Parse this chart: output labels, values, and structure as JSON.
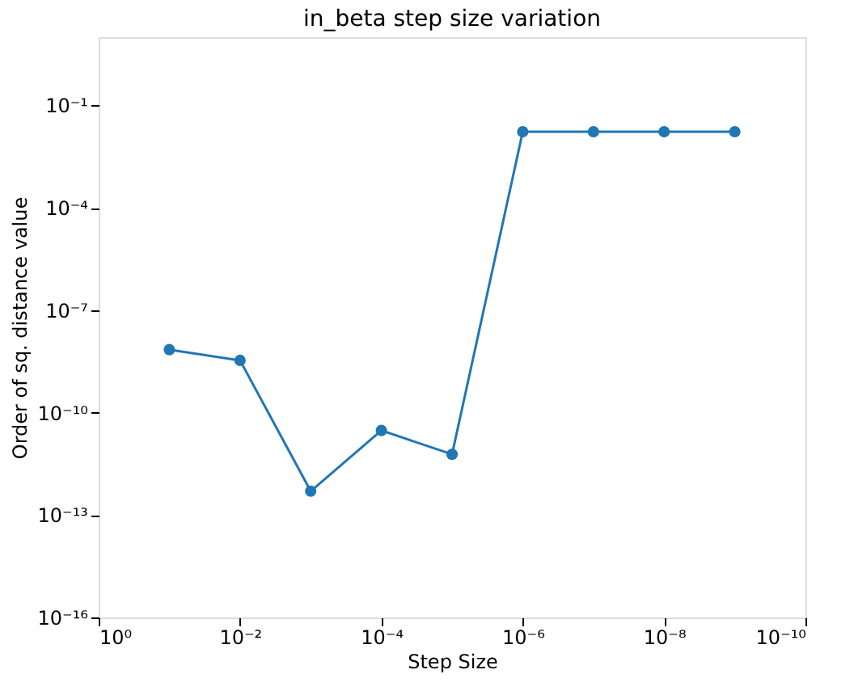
{
  "chart_data": {
    "type": "line",
    "title": "in_beta step size variation",
    "xlabel": "Step Size",
    "ylabel": "Order of sq. distance value",
    "x": [
      0.1,
      0.01,
      0.001,
      0.0001,
      1e-05,
      1e-06,
      1e-07,
      1e-08,
      1e-09
    ],
    "series": [
      {
        "color": "#1f77b4",
        "values": [
          7e-09,
          3.4e-09,
          5e-13,
          3e-11,
          6e-12,
          0.017,
          0.017,
          0.017,
          0.017
        ]
      }
    ],
    "log": "xy",
    "xlim": [
      1,
      1e-10
    ],
    "ylim": [
      1e-16,
      10
    ],
    "xticks": [
      {
        "value": 1,
        "label": "10⁰"
      },
      {
        "value": 0.01,
        "label": "10⁻²"
      },
      {
        "value": 0.0001,
        "label": "10⁻⁴"
      },
      {
        "value": 1e-06,
        "label": "10⁻⁶"
      },
      {
        "value": 1e-08,
        "label": "10⁻⁸"
      },
      {
        "value": 1e-10,
        "label": "10⁻¹⁰"
      }
    ],
    "yticks": [
      {
        "value": 1e-16,
        "label": "10⁻¹⁶"
      },
      {
        "value": 1e-13,
        "label": "10⁻¹³"
      },
      {
        "value": 1e-10,
        "label": "10⁻¹⁰"
      },
      {
        "value": 1e-07,
        "label": "10⁻⁷"
      },
      {
        "value": 0.0001,
        "label": "10⁻⁴"
      },
      {
        "value": 0.1,
        "label": "10⁻¹"
      }
    ],
    "marker": "circle",
    "line_style": "solid",
    "grid": false
  }
}
